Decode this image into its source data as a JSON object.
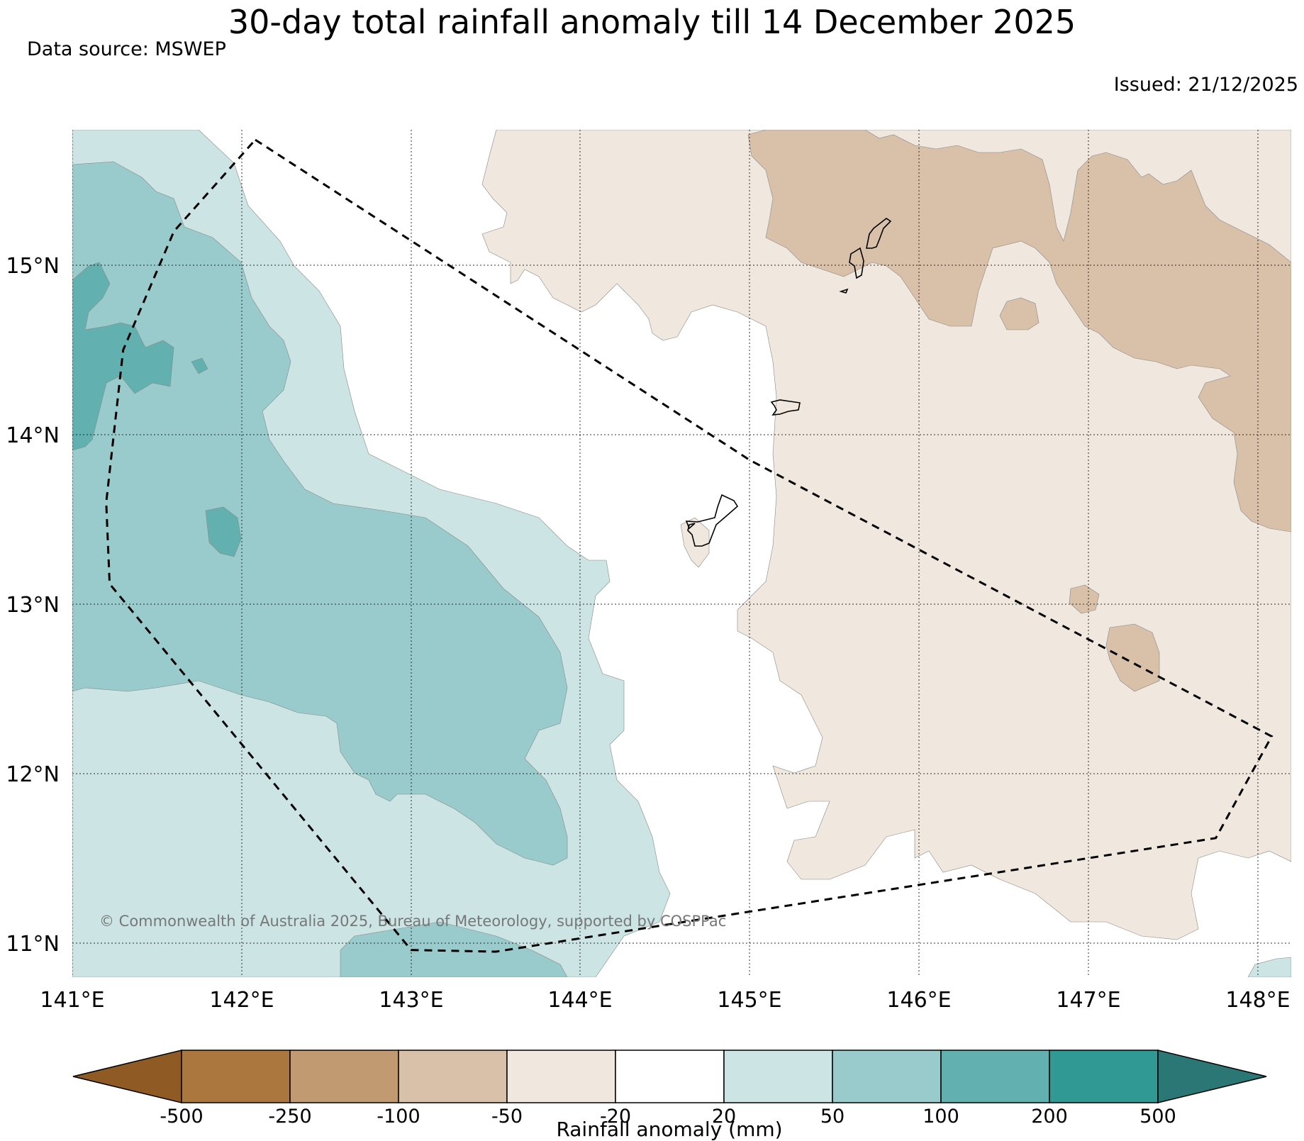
{
  "title": "30-day total rainfall anomaly till 14 December 2025",
  "data_source": "Data source: MSWEP",
  "issued": "Issued: 21/12/2025",
  "copyright": "© Commonwealth of Australia 2025, Bureau of Meteorology, supported by COSPPac",
  "map": {
    "lon_range": [
      141,
      148.2
    ],
    "lat_range": [
      10.8,
      15.8
    ],
    "lon_ticks": [
      141,
      142,
      143,
      144,
      145,
      146,
      147,
      148
    ],
    "lat_ticks": [
      11,
      12,
      13,
      14,
      15
    ],
    "lon_labels": [
      "141°E",
      "142°E",
      "143°E",
      "144°E",
      "145°E",
      "146°E",
      "147°E",
      "148°E"
    ],
    "lat_labels": [
      "11°N",
      "12°N",
      "13°N",
      "14°N",
      "15°N"
    ],
    "zone_outline": [
      [
        142.08,
        15.74
      ],
      [
        145.0,
        13.85
      ],
      [
        148.08,
        12.22
      ],
      [
        147.75,
        11.62
      ],
      [
        143.5,
        10.95
      ],
      [
        143.0,
        10.96
      ],
      [
        141.22,
        13.12
      ],
      [
        141.2,
        13.6
      ],
      [
        141.3,
        14.5
      ],
      [
        141.6,
        15.2
      ]
    ]
  },
  "colorbar": {
    "label": "Rainfall anomaly (mm)",
    "ticks": [
      "-500",
      "-250",
      "-100",
      "-50",
      "-20",
      "20",
      "50",
      "100",
      "200",
      "500"
    ],
    "colors": [
      "#8f5a24",
      "#ab773e",
      "#c29a72",
      "#d9c1a9",
      "#f0e7de",
      "#ffffff",
      "#cce4e3",
      "#99cbcc",
      "#63b0b0",
      "#319994",
      "#2b7775"
    ]
  }
}
